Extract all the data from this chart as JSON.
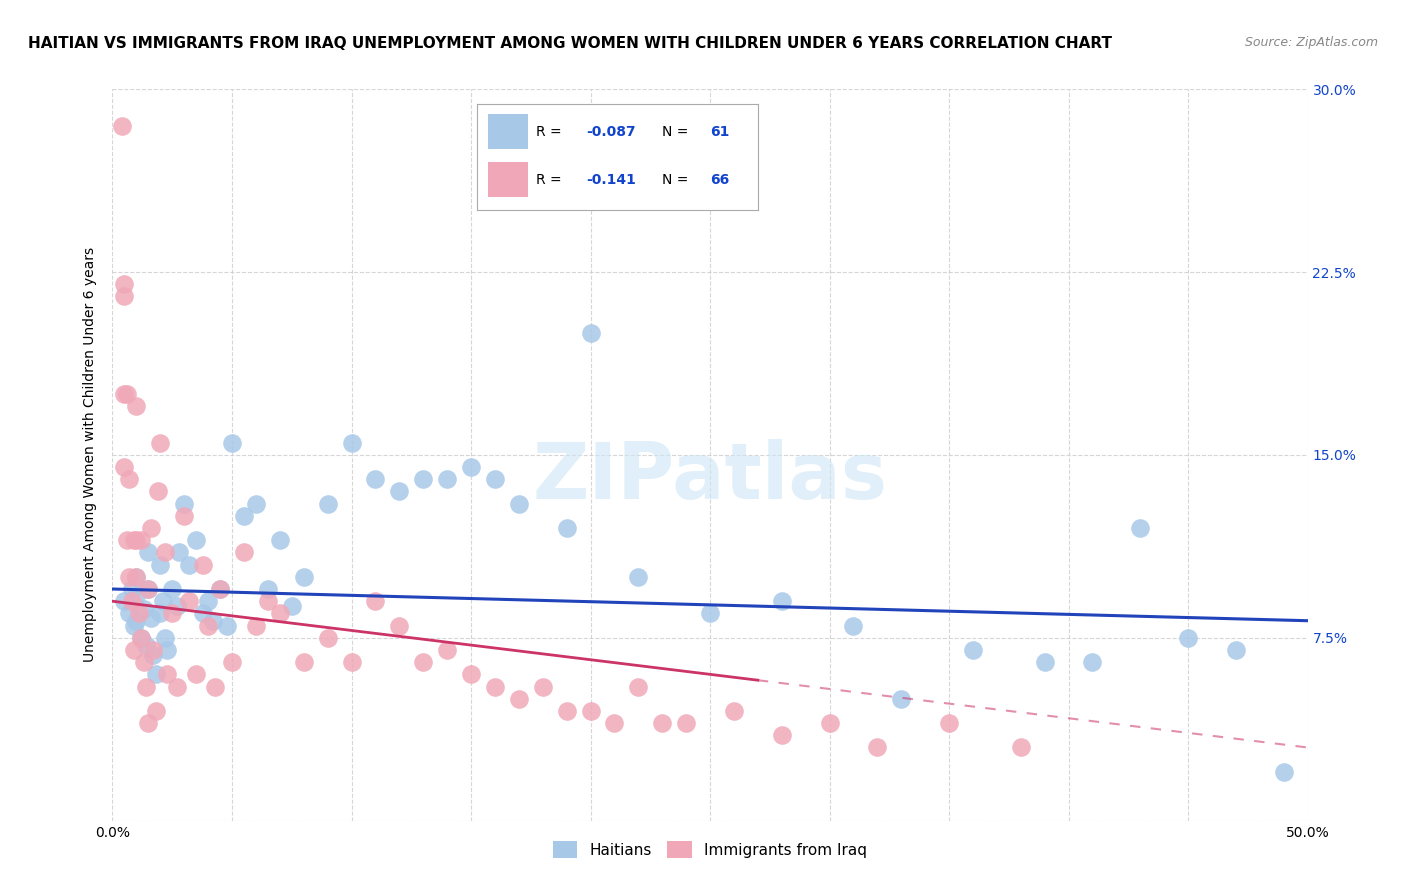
{
  "title": "HAITIAN VS IMMIGRANTS FROM IRAQ UNEMPLOYMENT AMONG WOMEN WITH CHILDREN UNDER 6 YEARS CORRELATION CHART",
  "source": "Source: ZipAtlas.com",
  "ylabel": "Unemployment Among Women with Children Under 6 years",
  "xlim": [
    0.0,
    0.5
  ],
  "ylim": [
    0.0,
    0.3
  ],
  "xticks": [
    0.0,
    0.05,
    0.1,
    0.15,
    0.2,
    0.25,
    0.3,
    0.35,
    0.4,
    0.45,
    0.5
  ],
  "yticks": [
    0.0,
    0.075,
    0.15,
    0.225,
    0.3
  ],
  "yticklabels": [
    "",
    "7.5%",
    "15.0%",
    "22.5%",
    "30.0%"
  ],
  "series1_label": "Haitians",
  "series1_R": "-0.087",
  "series1_N": "61",
  "series1_color": "#a8c8e8",
  "series1_line_color": "#2244bb",
  "series2_label": "Immigrants from Iraq",
  "series2_R": "-0.141",
  "series2_N": "66",
  "series2_color": "#f0a8b8",
  "series2_line_color": "#cc3366",
  "background_color": "#ffffff",
  "grid_color": "#cccccc",
  "watermark": "ZIPatlas",
  "legend_R_color": "#1144cc",
  "title_fontsize": 11,
  "axis_label_fontsize": 10,
  "tick_fontsize": 10,
  "haitians_x": [
    0.005,
    0.007,
    0.008,
    0.009,
    0.01,
    0.01,
    0.01,
    0.012,
    0.013,
    0.014,
    0.015,
    0.015,
    0.016,
    0.017,
    0.018,
    0.02,
    0.02,
    0.021,
    0.022,
    0.023,
    0.025,
    0.027,
    0.028,
    0.03,
    0.032,
    0.035,
    0.038,
    0.04,
    0.042,
    0.045,
    0.048,
    0.05,
    0.055,
    0.06,
    0.065,
    0.07,
    0.075,
    0.08,
    0.09,
    0.1,
    0.11,
    0.12,
    0.13,
    0.14,
    0.15,
    0.16,
    0.17,
    0.19,
    0.2,
    0.22,
    0.25,
    0.28,
    0.31,
    0.33,
    0.36,
    0.39,
    0.41,
    0.43,
    0.45,
    0.47,
    0.49
  ],
  "haitians_y": [
    0.09,
    0.085,
    0.095,
    0.08,
    0.1,
    0.092,
    0.082,
    0.075,
    0.087,
    0.072,
    0.11,
    0.095,
    0.083,
    0.068,
    0.06,
    0.105,
    0.085,
    0.09,
    0.075,
    0.07,
    0.095,
    0.088,
    0.11,
    0.13,
    0.105,
    0.115,
    0.085,
    0.09,
    0.082,
    0.095,
    0.08,
    0.155,
    0.125,
    0.13,
    0.095,
    0.115,
    0.088,
    0.1,
    0.13,
    0.155,
    0.14,
    0.135,
    0.14,
    0.14,
    0.145,
    0.14,
    0.13,
    0.12,
    0.2,
    0.1,
    0.085,
    0.09,
    0.08,
    0.05,
    0.07,
    0.065,
    0.065,
    0.12,
    0.075,
    0.07,
    0.02
  ],
  "iraq_x": [
    0.004,
    0.005,
    0.005,
    0.005,
    0.005,
    0.006,
    0.006,
    0.007,
    0.007,
    0.008,
    0.009,
    0.009,
    0.01,
    0.01,
    0.01,
    0.011,
    0.012,
    0.012,
    0.013,
    0.014,
    0.015,
    0.015,
    0.016,
    0.017,
    0.018,
    0.019,
    0.02,
    0.022,
    0.023,
    0.025,
    0.027,
    0.03,
    0.032,
    0.035,
    0.038,
    0.04,
    0.043,
    0.045,
    0.05,
    0.055,
    0.06,
    0.065,
    0.07,
    0.08,
    0.09,
    0.1,
    0.11,
    0.12,
    0.13,
    0.14,
    0.15,
    0.16,
    0.17,
    0.18,
    0.19,
    0.2,
    0.21,
    0.22,
    0.23,
    0.24,
    0.26,
    0.28,
    0.3,
    0.32,
    0.35,
    0.38
  ],
  "iraq_y": [
    0.285,
    0.22,
    0.215,
    0.175,
    0.145,
    0.175,
    0.115,
    0.14,
    0.1,
    0.09,
    0.115,
    0.07,
    0.17,
    0.115,
    0.1,
    0.085,
    0.075,
    0.115,
    0.065,
    0.055,
    0.04,
    0.095,
    0.12,
    0.07,
    0.045,
    0.135,
    0.155,
    0.11,
    0.06,
    0.085,
    0.055,
    0.125,
    0.09,
    0.06,
    0.105,
    0.08,
    0.055,
    0.095,
    0.065,
    0.11,
    0.08,
    0.09,
    0.085,
    0.065,
    0.075,
    0.065,
    0.09,
    0.08,
    0.065,
    0.07,
    0.06,
    0.055,
    0.05,
    0.055,
    0.045,
    0.045,
    0.04,
    0.055,
    0.04,
    0.04,
    0.045,
    0.035,
    0.04,
    0.03,
    0.04,
    0.03
  ],
  "blue_line_x0": 0.0,
  "blue_line_y0": 0.095,
  "blue_line_x1": 0.5,
  "blue_line_y1": 0.082,
  "pink_line_x0": 0.0,
  "pink_line_y0": 0.09,
  "pink_line_x1_solid": 0.27,
  "pink_line_x1": 0.5,
  "pink_line_y1": 0.03
}
